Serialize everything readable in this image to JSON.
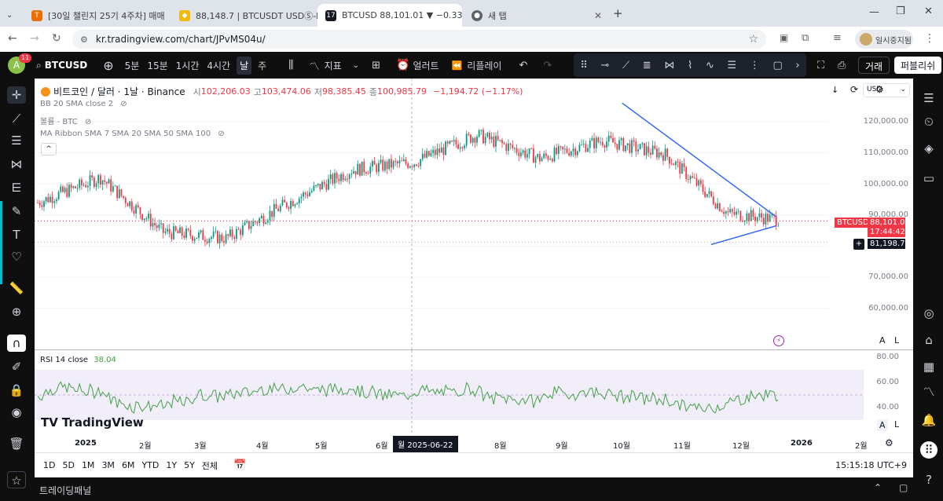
{
  "browser": {
    "tabs": [
      {
        "title": "[30일 챌린지 25기 4주차] 매매",
        "favicon": "tistory-icon"
      },
      {
        "title": "88,148.7 | BTCUSDT USDⓈ-M",
        "favicon": "binance-icon"
      },
      {
        "title": "BTCUSD 88,101.01 ▼ −0.33%",
        "favicon": "tradingview-icon"
      },
      {
        "title": "새 탭",
        "favicon": "chrome-icon"
      }
    ],
    "url": "kr.tradingview.com/chart/JPvMS04u/",
    "profile_label": "일시중지됨"
  },
  "toolbar": {
    "avatar_letter": "A",
    "notif_count": "11",
    "symbol": "BTCUSD",
    "intervals": [
      "5분",
      "15분",
      "1시간",
      "4시간",
      "날",
      "주"
    ],
    "indicators_label": "지표",
    "alert_label": "얼러트",
    "replay_label": "리플레이",
    "trade_button": "거래",
    "publish_button": "퍼블리쉬"
  },
  "legend": {
    "title": "비트코인 / 달러 · 1날 · Binance",
    "o_label": "시",
    "o": "102,206.03",
    "h_label": "고",
    "h": "103,474.06",
    "l_label": "저",
    "l": "98,385.45",
    "c_label": "종",
    "c": "100,985.79",
    "change": "−1,194.72 (−1.17%)",
    "indicators": [
      "BB 20 SMA close 2",
      "볼륨 - BTC",
      "MA Ribbon SMA 7 SMA 20 SMA 50 SMA 100"
    ]
  },
  "price_axis": {
    "currency": "USD",
    "ticks": [
      "120,000.00",
      "110,000.00",
      "100,000.00",
      "90,000.00",
      "80,000.00",
      "70,000.00",
      "60,000.00"
    ],
    "symbol_tag": "BTCUSD",
    "last_price": "88,101.01",
    "countdown": "17:44:42",
    "crosshair_price": "81,198.72"
  },
  "rsi": {
    "label": "RSI 14 close",
    "value": "38.04",
    "ticks": [
      "80.00",
      "60.00",
      "40.00"
    ]
  },
  "time_axis": {
    "labels": [
      "2025",
      "2월",
      "3월",
      "4월",
      "5월",
      "6월",
      "8월",
      "9월",
      "10월",
      "11월",
      "12월",
      "2026",
      "2월"
    ],
    "crosshair_date": "월 2025-06-22"
  },
  "bottom": {
    "ranges": [
      "1D",
      "5D",
      "1M",
      "3M",
      "6M",
      "YTD",
      "1Y",
      "5Y",
      "전체"
    ],
    "clock": "15:15:18 UTC+9",
    "panel_label": "트레이딩패널"
  },
  "brand": "TradingView",
  "chart_data": {
    "type": "candlestick",
    "x_label": "",
    "y_label": "",
    "months": [
      "2025-01",
      "2025-02",
      "2025-03",
      "2025-04",
      "2025-05",
      "2025-06",
      "2025-07",
      "2025-08",
      "2025-09",
      "2025-10",
      "2025-11",
      "2025-12"
    ],
    "monthly_close_approx": [
      102000,
      84500,
      82500,
      94000,
      104500,
      107000,
      115800,
      108200,
      114000,
      109500,
      90500,
      88100
    ],
    "trendline_upper": {
      "from": [
        "2025-10-06",
        126000
      ],
      "to": [
        "2025-12-22",
        89500
      ]
    },
    "trendline_lower": {
      "from": [
        "2025-11-20",
        80500
      ],
      "to": [
        "2025-12-22",
        86500
      ]
    },
    "y_range": [
      55000,
      130000
    ],
    "rsi_range": [
      30,
      85
    ],
    "colors": {
      "up": "#089981",
      "down": "#f23645",
      "trendline": "#2962ff",
      "rsi": "#43a047"
    }
  }
}
